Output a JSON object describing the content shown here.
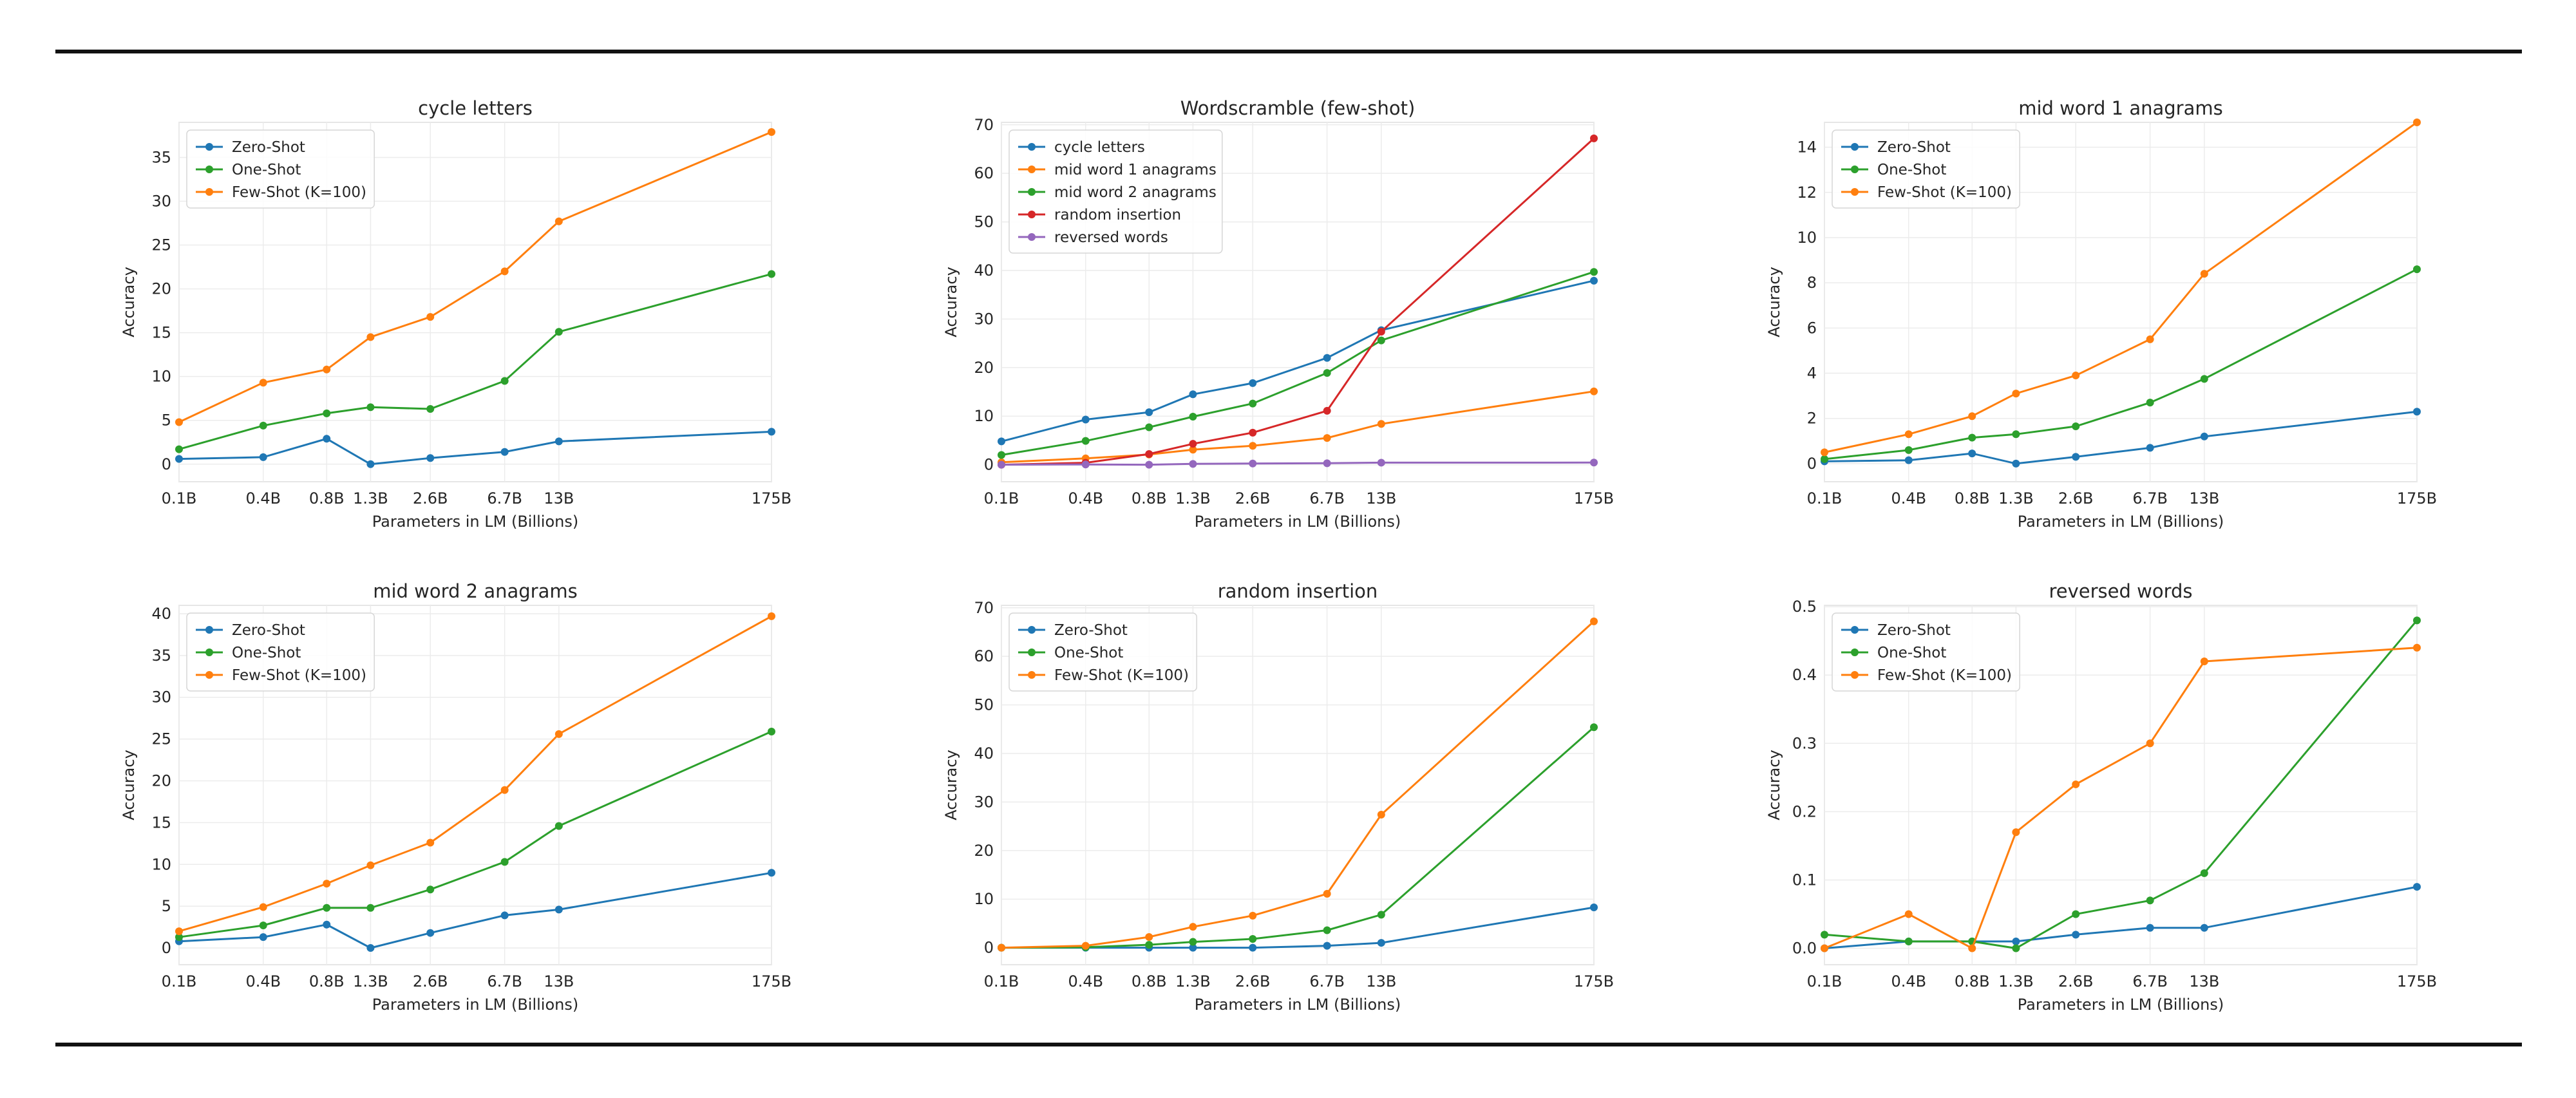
{
  "figure": {
    "x_axis_label": "Parameters in LM (Billions)",
    "y_axis_label": "Accuracy",
    "x_tick_labels": [
      "0.1B",
      "0.4B",
      "0.8B",
      "1.3B",
      "2.6B",
      "6.7B",
      "13B",
      "175B"
    ],
    "colors": {
      "blue": "#1f77b4",
      "orange": "#ff7f0e",
      "green": "#2ca02c",
      "red": "#d62728",
      "purple": "#9467bd"
    }
  },
  "chart_data": [
    {
      "type": "line",
      "title": "cycle letters",
      "xlabel": "Parameters in LM (Billions)",
      "ylabel": "Accuracy",
      "categories": [
        "0.1B",
        "0.4B",
        "0.8B",
        "1.3B",
        "2.6B",
        "6.7B",
        "13B",
        "175B"
      ],
      "x_params": [
        0.125,
        0.35,
        0.76,
        1.3,
        2.7,
        6.7,
        13,
        175
      ],
      "ylim": [
        -2,
        39
      ],
      "yticks": [
        0,
        5,
        10,
        15,
        20,
        25,
        30,
        35
      ],
      "legend": "upper-left",
      "series": [
        {
          "name": "Zero-Shot",
          "color": "#1f77b4",
          "values": [
            0.6,
            0.8,
            2.9,
            0.0,
            0.7,
            1.4,
            2.6,
            3.7
          ]
        },
        {
          "name": "One-Shot",
          "color": "#2ca02c",
          "values": [
            1.7,
            4.4,
            5.8,
            6.5,
            6.3,
            9.5,
            15.1,
            21.7
          ]
        },
        {
          "name": "Few-Shot (K=100)",
          "color": "#ff7f0e",
          "values": [
            4.8,
            9.3,
            10.8,
            14.5,
            16.8,
            22.0,
            27.7,
            37.9
          ]
        }
      ]
    },
    {
      "type": "line",
      "title": "Wordscramble (few-shot)",
      "xlabel": "Parameters in LM (Billions)",
      "ylabel": "Accuracy",
      "categories": [
        "0.1B",
        "0.4B",
        "0.8B",
        "1.3B",
        "2.6B",
        "6.7B",
        "13B",
        "175B"
      ],
      "x_params": [
        0.125,
        0.35,
        0.76,
        1.3,
        2.7,
        6.7,
        13,
        175
      ],
      "ylim": [
        -3.5,
        70.5
      ],
      "yticks": [
        0,
        10,
        20,
        30,
        40,
        50,
        60,
        70
      ],
      "legend": "upper-left",
      "series": [
        {
          "name": "cycle letters",
          "color": "#1f77b4",
          "values": [
            4.8,
            9.3,
            10.8,
            14.5,
            16.8,
            22.0,
            27.7,
            37.9
          ]
        },
        {
          "name": "mid word 1 anagrams",
          "color": "#ff7f0e",
          "values": [
            0.5,
            1.3,
            2.1,
            3.1,
            3.9,
            5.5,
            8.4,
            15.1
          ]
        },
        {
          "name": "mid word 2 anagrams",
          "color": "#2ca02c",
          "values": [
            2.0,
            4.9,
            7.7,
            9.9,
            12.6,
            18.9,
            25.6,
            39.7
          ]
        },
        {
          "name": "random insertion",
          "color": "#d62728",
          "values": [
            0.0,
            0.4,
            2.2,
            4.3,
            6.6,
            11.1,
            27.4,
            67.2
          ]
        },
        {
          "name": "reversed words",
          "color": "#9467bd",
          "values": [
            0.0,
            0.05,
            0.0,
            0.17,
            0.24,
            0.3,
            0.42,
            0.44
          ]
        }
      ]
    },
    {
      "type": "line",
      "title": "mid word 1 anagrams",
      "xlabel": "Parameters in LM (Billions)",
      "ylabel": "Accuracy",
      "categories": [
        "0.1B",
        "0.4B",
        "0.8B",
        "1.3B",
        "2.6B",
        "6.7B",
        "13B",
        "175B"
      ],
      "x_params": [
        0.125,
        0.35,
        0.76,
        1.3,
        2.7,
        6.7,
        13,
        175
      ],
      "ylim": [
        -0.8,
        15.1
      ],
      "yticks": [
        0,
        2,
        4,
        6,
        8,
        10,
        12,
        14
      ],
      "legend": "upper-left",
      "series": [
        {
          "name": "Zero-Shot",
          "color": "#1f77b4",
          "values": [
            0.1,
            0.15,
            0.45,
            0.0,
            0.3,
            0.7,
            1.2,
            2.3
          ]
        },
        {
          "name": "One-Shot",
          "color": "#2ca02c",
          "values": [
            0.2,
            0.6,
            1.15,
            1.3,
            1.65,
            2.7,
            3.75,
            8.6
          ]
        },
        {
          "name": "Few-Shot (K=100)",
          "color": "#ff7f0e",
          "values": [
            0.5,
            1.3,
            2.1,
            3.1,
            3.9,
            5.5,
            8.4,
            15.1
          ]
        }
      ]
    },
    {
      "type": "line",
      "title": "mid word 2 anagrams",
      "xlabel": "Parameters in LM (Billions)",
      "ylabel": "Accuracy",
      "categories": [
        "0.1B",
        "0.4B",
        "0.8B",
        "1.3B",
        "2.6B",
        "6.7B",
        "13B",
        "175B"
      ],
      "x_params": [
        0.125,
        0.35,
        0.76,
        1.3,
        2.7,
        6.7,
        13,
        175
      ],
      "ylim": [
        -2,
        41
      ],
      "yticks": [
        0,
        5,
        10,
        15,
        20,
        25,
        30,
        35,
        40
      ],
      "legend": "upper-left",
      "series": [
        {
          "name": "Zero-Shot",
          "color": "#1f77b4",
          "values": [
            0.8,
            1.3,
            2.8,
            0.0,
            1.8,
            3.9,
            4.6,
            9.0
          ]
        },
        {
          "name": "One-Shot",
          "color": "#2ca02c",
          "values": [
            1.3,
            2.7,
            4.8,
            4.8,
            7.0,
            10.3,
            14.6,
            25.9
          ]
        },
        {
          "name": "Few-Shot (K=100)",
          "color": "#ff7f0e",
          "values": [
            2.0,
            4.9,
            7.7,
            9.9,
            12.6,
            18.9,
            25.6,
            39.7
          ]
        }
      ]
    },
    {
      "type": "line",
      "title": "random insertion",
      "xlabel": "Parameters in LM (Billions)",
      "ylabel": "Accuracy",
      "categories": [
        "0.1B",
        "0.4B",
        "0.8B",
        "1.3B",
        "2.6B",
        "6.7B",
        "13B",
        "175B"
      ],
      "x_params": [
        0.125,
        0.35,
        0.76,
        1.3,
        2.7,
        6.7,
        13,
        175
      ],
      "ylim": [
        -3.5,
        70.5
      ],
      "yticks": [
        0,
        10,
        20,
        30,
        40,
        50,
        60,
        70
      ],
      "legend": "upper-left",
      "series": [
        {
          "name": "Zero-Shot",
          "color": "#1f77b4",
          "values": [
            0.0,
            0.0,
            0.0,
            0.0,
            0.0,
            0.4,
            1.0,
            8.3
          ]
        },
        {
          "name": "One-Shot",
          "color": "#2ca02c",
          "values": [
            0.0,
            0.1,
            0.6,
            1.2,
            1.8,
            3.6,
            6.8,
            45.4
          ]
        },
        {
          "name": "Few-Shot (K=100)",
          "color": "#ff7f0e",
          "values": [
            0.0,
            0.4,
            2.2,
            4.3,
            6.6,
            11.1,
            27.4,
            67.2
          ]
        }
      ]
    },
    {
      "type": "line",
      "title": "reversed words",
      "xlabel": "Parameters in LM (Billions)",
      "ylabel": "Accuracy",
      "categories": [
        "0.1B",
        "0.4B",
        "0.8B",
        "1.3B",
        "2.6B",
        "6.7B",
        "13B",
        "175B"
      ],
      "x_params": [
        0.125,
        0.35,
        0.76,
        1.3,
        2.7,
        6.7,
        13,
        175
      ],
      "ylim": [
        -0.024,
        0.502
      ],
      "yticks": [
        0.0,
        0.1,
        0.2,
        0.3,
        0.4,
        0.5
      ],
      "ytick_labels": [
        "0.0",
        "0.1",
        "0.2",
        "0.3",
        "0.4",
        "0.5"
      ],
      "legend": "upper-left",
      "series": [
        {
          "name": "Zero-Shot",
          "color": "#1f77b4",
          "values": [
            0.0,
            0.01,
            0.01,
            0.01,
            0.02,
            0.03,
            0.03,
            0.09
          ]
        },
        {
          "name": "One-Shot",
          "color": "#2ca02c",
          "values": [
            0.02,
            0.01,
            0.01,
            0.0,
            0.05,
            0.07,
            0.11,
            0.48
          ]
        },
        {
          "name": "Few-Shot (K=100)",
          "color": "#ff7f0e",
          "values": [
            0.0,
            0.05,
            0.0,
            0.17,
            0.24,
            0.3,
            0.42,
            0.44
          ]
        }
      ]
    }
  ]
}
